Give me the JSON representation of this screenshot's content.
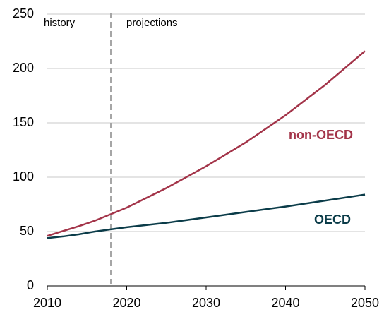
{
  "chart_data": {
    "type": "line",
    "x": [
      2010,
      2012,
      2014,
      2016,
      2018,
      2020,
      2025,
      2030,
      2035,
      2040,
      2045,
      2050
    ],
    "series": [
      {
        "name": "non-OECD",
        "color": "#a33449",
        "values": [
          46,
          50.5,
          55,
          60,
          66,
          72,
          90,
          110,
          132,
          157,
          185,
          216
        ]
      },
      {
        "name": "OECD",
        "color": "#0b3c49",
        "values": [
          44,
          45.5,
          47.5,
          50,
          52,
          54,
          58,
          63,
          68,
          73,
          78.5,
          84
        ]
      }
    ],
    "xlim": [
      2010,
      2050
    ],
    "xticks": [
      2010,
      2020,
      2030,
      2040,
      2050
    ],
    "ylim": [
      0,
      250
    ],
    "yticks": [
      0,
      50,
      100,
      150,
      200,
      250
    ],
    "grid": true,
    "divider": {
      "x": 2018,
      "left_label": "history",
      "right_label": "projections"
    }
  }
}
